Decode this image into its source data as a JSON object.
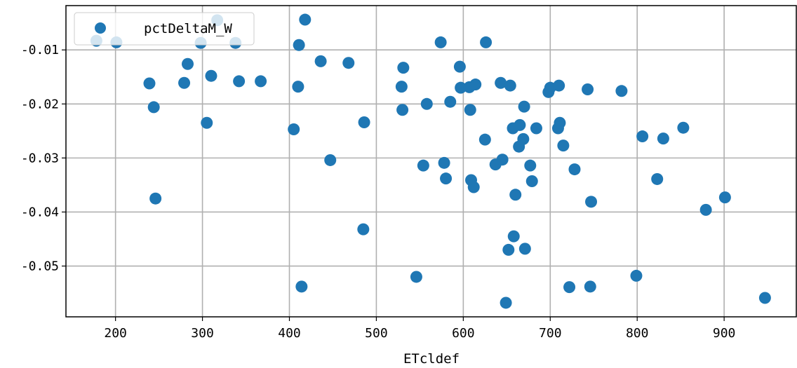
{
  "chart_data": {
    "type": "scatter",
    "xlabel": "ETcldef",
    "ylabel": "",
    "xlim": [
      143,
      983
    ],
    "ylim": [
      -0.0594,
      -0.0018
    ],
    "xticks": [
      200,
      300,
      400,
      500,
      600,
      700,
      800,
      900
    ],
    "xtick_labels": [
      "200",
      "300",
      "400",
      "500",
      "600",
      "700",
      "800",
      "900"
    ],
    "yticks": [
      -0.01,
      -0.02,
      -0.03,
      -0.04,
      -0.05
    ],
    "ytick_labels": [
      "-0.01",
      "-0.02",
      "-0.03",
      "-0.04",
      "-0.05"
    ],
    "grid": true,
    "legend_position": "top-left",
    "series": [
      {
        "name": "pctDeltaM_W",
        "color": "#1f77b4",
        "points": [
          [
            178,
            -0.0083
          ],
          [
            201,
            -0.0086
          ],
          [
            239,
            -0.0162
          ],
          [
            244,
            -0.0206
          ],
          [
            246,
            -0.0375
          ],
          [
            279,
            -0.0161
          ],
          [
            283,
            -0.0126
          ],
          [
            298,
            -0.0087
          ],
          [
            305,
            -0.0235
          ],
          [
            310,
            -0.0148
          ],
          [
            317,
            -0.0045
          ],
          [
            338,
            -0.0087
          ],
          [
            342,
            -0.0158
          ],
          [
            367,
            -0.0158
          ],
          [
            405,
            -0.0247
          ],
          [
            410,
            -0.0168
          ],
          [
            411,
            -0.0091
          ],
          [
            414,
            -0.0538
          ],
          [
            418,
            -0.0044
          ],
          [
            436,
            -0.0121
          ],
          [
            447,
            -0.0304
          ],
          [
            468,
            -0.0124
          ],
          [
            485,
            -0.0432
          ],
          [
            486,
            -0.0234
          ],
          [
            529,
            -0.0168
          ],
          [
            530,
            -0.0211
          ],
          [
            531,
            -0.0133
          ],
          [
            546,
            -0.052
          ],
          [
            554,
            -0.0314
          ],
          [
            558,
            -0.02
          ],
          [
            574,
            -0.0086
          ],
          [
            578,
            -0.0309
          ],
          [
            580,
            -0.0338
          ],
          [
            585,
            -0.0196
          ],
          [
            596,
            -0.0131
          ],
          [
            597,
            -0.017
          ],
          [
            607,
            -0.0169
          ],
          [
            608,
            -0.0211
          ],
          [
            609,
            -0.0341
          ],
          [
            612,
            -0.0354
          ],
          [
            614,
            -0.0164
          ],
          [
            625,
            -0.0266
          ],
          [
            626,
            -0.0086
          ],
          [
            637,
            -0.0312
          ],
          [
            643,
            -0.0161
          ],
          [
            645,
            -0.0303
          ],
          [
            649,
            -0.0568
          ],
          [
            652,
            -0.047
          ],
          [
            654,
            -0.0166
          ],
          [
            657,
            -0.0245
          ],
          [
            658,
            -0.0445
          ],
          [
            660,
            -0.0368
          ],
          [
            664,
            -0.0279
          ],
          [
            665,
            -0.0239
          ],
          [
            669,
            -0.0265
          ],
          [
            670,
            -0.0205
          ],
          [
            671,
            -0.0468
          ],
          [
            677,
            -0.0314
          ],
          [
            679,
            -0.0343
          ],
          [
            684,
            -0.0245
          ],
          [
            698,
            -0.0178
          ],
          [
            700,
            -0.017
          ],
          [
            709,
            -0.0245
          ],
          [
            710,
            -0.0166
          ],
          [
            711,
            -0.0235
          ],
          [
            715,
            -0.0277
          ],
          [
            722,
            -0.0539
          ],
          [
            728,
            -0.0321
          ],
          [
            743,
            -0.0173
          ],
          [
            746,
            -0.0538
          ],
          [
            747,
            -0.0381
          ],
          [
            782,
            -0.0176
          ],
          [
            799,
            -0.0518
          ],
          [
            806,
            -0.026
          ],
          [
            823,
            -0.0339
          ],
          [
            830,
            -0.0264
          ],
          [
            853,
            -0.0244
          ],
          [
            879,
            -0.0396
          ],
          [
            901,
            -0.0373
          ],
          [
            947,
            -0.0559
          ]
        ]
      }
    ]
  }
}
